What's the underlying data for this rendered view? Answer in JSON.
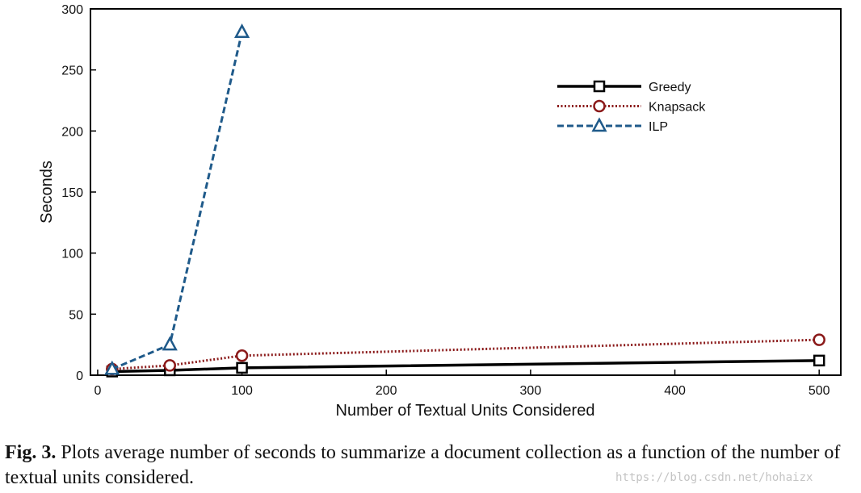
{
  "chart_data": {
    "type": "line",
    "title": "",
    "xlabel": "Number of Textual Units Considered",
    "ylabel": "Seconds",
    "xlim": [
      -5,
      515
    ],
    "ylim": [
      0,
      300
    ],
    "xticks": [
      0,
      100,
      200,
      300,
      400,
      500
    ],
    "yticks": [
      0,
      50,
      100,
      150,
      200,
      250,
      300
    ],
    "grid": false,
    "legend_position": "top-right",
    "series": [
      {
        "name": "Greedy",
        "x": [
          10,
          50,
          100,
          500
        ],
        "y": [
          3,
          4,
          6,
          12
        ],
        "color": "#000000",
        "line_style": "solid",
        "marker": "square"
      },
      {
        "name": "Knapsack",
        "x": [
          10,
          50,
          100,
          500
        ],
        "y": [
          5,
          8,
          16,
          29
        ],
        "color": "#8b1a1a",
        "line_style": "dotted",
        "marker": "circle"
      },
      {
        "name": "ILP",
        "x": [
          10,
          50,
          100
        ],
        "y": [
          5,
          25,
          281
        ],
        "color": "#1f5a8a",
        "line_style": "dashed",
        "marker": "triangle"
      }
    ]
  },
  "caption": {
    "label": "Fig. 3.",
    "text": " Plots average number of seconds to summarize a document collection as a function of the number of textual units considered."
  },
  "watermark": "https://blog.csdn.net/hohaizx"
}
